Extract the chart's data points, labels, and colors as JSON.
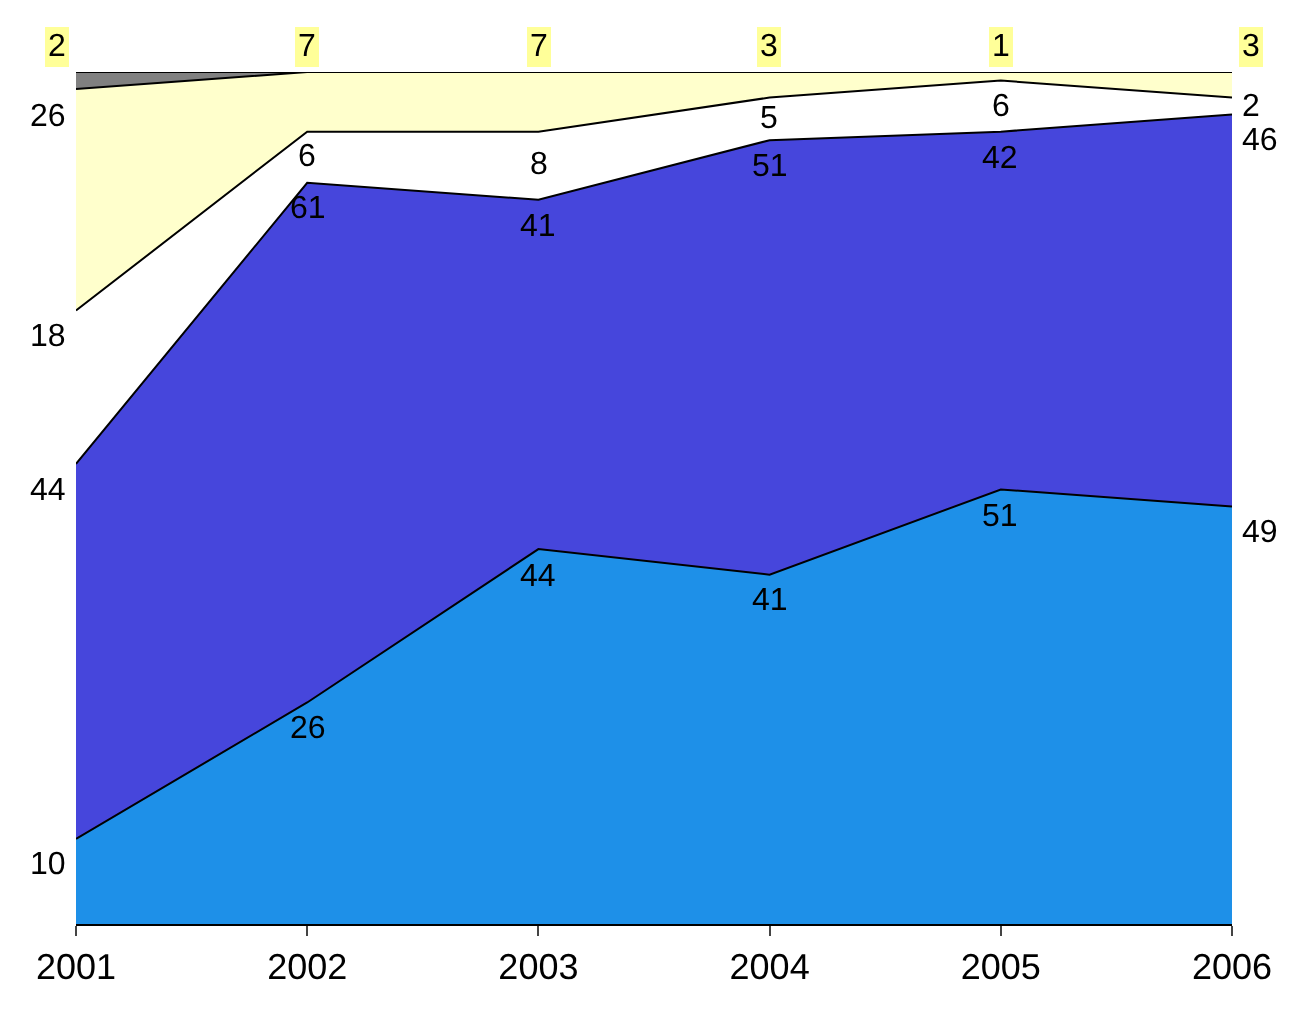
{
  "chart_data": {
    "type": "area",
    "stacked": true,
    "categories": [
      "2001",
      "2002",
      "2003",
      "2004",
      "2005",
      "2006"
    ],
    "tick_labels": "x",
    "series": [
      {
        "color": "#1e90e8",
        "values": [
          10,
          26,
          44,
          41,
          51,
          49
        ],
        "value_labels": [
          "10",
          "26",
          "44",
          "41",
          "51",
          "49"
        ]
      },
      {
        "color": "#4646dc",
        "values": [
          44,
          61,
          41,
          51,
          42,
          46
        ],
        "value_labels": [
          "44",
          "61",
          "41",
          "51",
          "42",
          "46"
        ]
      },
      {
        "color": "#ffffff",
        "values": [
          18,
          6,
          8,
          5,
          6,
          2
        ],
        "value_labels": [
          "18",
          "6",
          "8",
          "5",
          "6",
          "2"
        ]
      },
      {
        "color": "#ffffcc",
        "values": [
          26,
          7,
          7,
          3,
          1,
          3
        ],
        "value_labels": [
          "26",
          "7",
          "7",
          "3",
          "1",
          "3"
        ]
      },
      {
        "color": "#808080",
        "values": [
          2,
          0,
          0,
          0,
          0,
          0
        ],
        "value_labels": [
          "2",
          null,
          null,
          null,
          null,
          null
        ]
      }
    ]
  }
}
